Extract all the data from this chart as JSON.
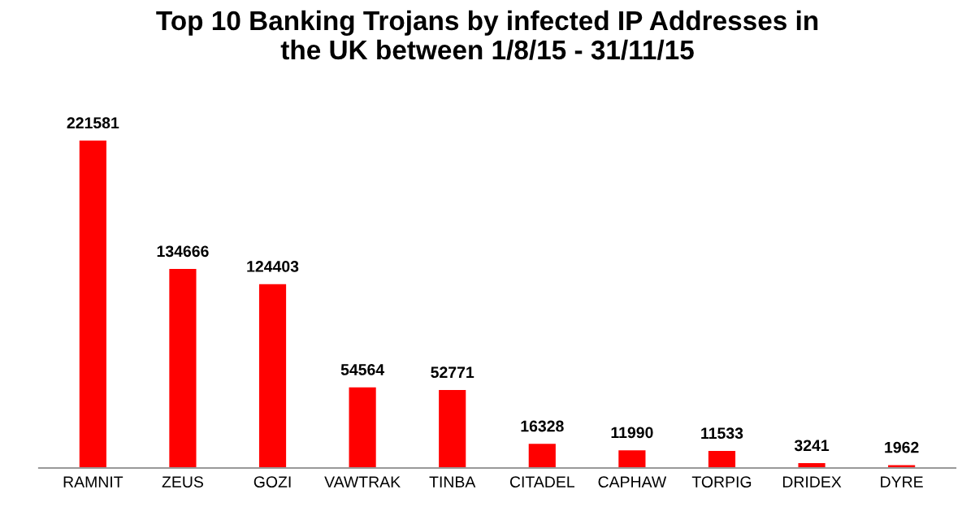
{
  "chart_data": {
    "type": "bar",
    "title": "Top 10 Banking Trojans by infected IP Addresses in\nthe UK between 1/8/15 - 31/11/15",
    "categories": [
      "RAMNIT",
      "ZEUS",
      "GOZI",
      "VAWTRAK",
      "TINBA",
      "CITADEL",
      "CAPHAW",
      "TORPIG",
      "DRIDEX",
      "DYRE"
    ],
    "values": [
      221581,
      134666,
      124403,
      54564,
      52771,
      16328,
      11990,
      11533,
      3241,
      1962
    ],
    "color": "#ff0000",
    "data_labels": true,
    "grid": false,
    "legend": false
  }
}
